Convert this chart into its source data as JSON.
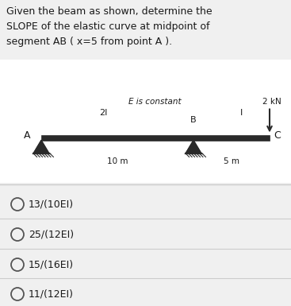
{
  "title_line1": "Given the beam as shown, determine the",
  "title_line2": "SLOPE of the elastic curve at midpoint of",
  "title_line3": "segment AB ( x=5 from point A ).",
  "ei_label": "E is constant",
  "force_label": "2 kN",
  "segment_left_label": "2I",
  "segment_right_label": "I",
  "point_a": "A",
  "point_b": "B",
  "point_c": "C",
  "dim_left": "10 m",
  "dim_right": "5 m",
  "options": [
    "13/(10EI)",
    "25/(12EI)",
    "15/(16EI)",
    "11/(12EI)"
  ],
  "bg_color": "#f0f0f0",
  "text_color": "#1a1a1a",
  "beam_color": "#2a2a2a",
  "option_circle_color": "#555555",
  "divider_color": "#cccccc",
  "title_fontsize": 9.0,
  "beam_area_bg": "#ffffff"
}
